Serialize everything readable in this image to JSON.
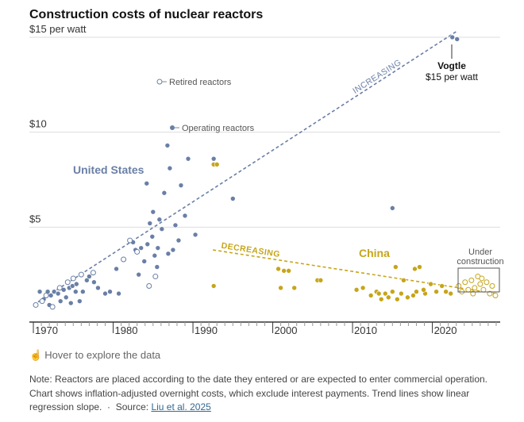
{
  "title": "Construction costs of nuclear reactors",
  "hover_text": "Hover to explore the data",
  "note": {
    "text": "Note: Reactors are placed according to the date they entered or are expected to enter commercial operation. Chart shows inflation-adjusted overnight costs, which exclude interest payments. Trend lines show linear regression slope.",
    "source_label": "Source:",
    "source_link": "Liu et al. 2025"
  },
  "colors": {
    "us": "#6a7fa6",
    "china": "#c6a51a",
    "retired": "#6a7fa6",
    "axis": "#333333",
    "grid": "#dddddd"
  },
  "annotations": {
    "us_label": "United States",
    "china_label": "China",
    "vogtle_name": "Vogtle",
    "vogtle_value": "$15 per watt",
    "retired_legend": "Retired reactors",
    "operating_legend": "Operating reactors",
    "increasing": "INCREASING",
    "decreasing": "DECREASING",
    "under_construction": [
      "Under",
      "construction"
    ]
  },
  "chart_data": {
    "type": "scatter",
    "title": "Construction costs of nuclear reactors",
    "xlabel": "",
    "ylabel": "",
    "xlim": [
      1969.5,
      2028.5
    ],
    "ylim": [
      0,
      15.5
    ],
    "x_ticks": [
      1970,
      1980,
      1990,
      2000,
      2010,
      2020
    ],
    "x_tick_labels": [
      "1970",
      "1980",
      "1990",
      "2000",
      "2010",
      "2020"
    ],
    "y_ticks": [
      5,
      10,
      15
    ],
    "y_tick_labels": [
      "$5",
      "$10",
      "$15 per watt"
    ],
    "grid": "horizontal",
    "series": [
      {
        "name": "United States",
        "status": "operating",
        "points": [
          [
            1970.8,
            1.6
          ],
          [
            1971.3,
            1.2
          ],
          [
            1971.8,
            1.6
          ],
          [
            1972.2,
            1.4
          ],
          [
            1972.6,
            1.6
          ],
          [
            1973.1,
            1.5
          ],
          [
            1973.4,
            1.1
          ],
          [
            1973.8,
            1.7
          ],
          [
            1974.1,
            1.3
          ],
          [
            1974.5,
            1.8
          ],
          [
            1974.9,
            1.9
          ],
          [
            1975.4,
            2.0
          ],
          [
            1975.8,
            1.1
          ],
          [
            1976.2,
            1.6
          ],
          [
            1976.7,
            2.2
          ],
          [
            1977.0,
            2.4
          ],
          [
            1977.6,
            2.1
          ],
          [
            1978.1,
            1.8
          ],
          [
            1979.0,
            1.5
          ],
          [
            1979.6,
            1.6
          ],
          [
            1980.4,
            2.8
          ],
          [
            1980.7,
            1.5
          ],
          [
            1982.5,
            4.2
          ],
          [
            1982.8,
            3.8
          ],
          [
            1983.2,
            2.5
          ],
          [
            1983.5,
            3.9
          ],
          [
            1983.9,
            3.2
          ],
          [
            1984.3,
            4.1
          ],
          [
            1984.6,
            5.2
          ],
          [
            1984.9,
            4.5
          ],
          [
            1985.2,
            3.5
          ],
          [
            1985.5,
            2.9
          ],
          [
            1985.8,
            5.4
          ],
          [
            1986.1,
            4.9
          ],
          [
            1986.4,
            6.8
          ],
          [
            1986.8,
            9.3
          ],
          [
            1987.1,
            8.1
          ],
          [
            1987.5,
            3.8
          ],
          [
            1987.8,
            5.1
          ],
          [
            1988.2,
            4.3
          ],
          [
            1988.5,
            7.2
          ],
          [
            1989.0,
            5.6
          ],
          [
            1989.4,
            8.6
          ],
          [
            1990.3,
            4.6
          ],
          [
            1992.6,
            8.6
          ],
          [
            1995.0,
            6.5
          ],
          [
            2015.0,
            6.0
          ],
          [
            2022.5,
            15.0
          ],
          [
            2023.1,
            14.9
          ],
          [
            1985.6,
            3.9
          ],
          [
            1984.2,
            7.3
          ],
          [
            1985.0,
            5.8
          ],
          [
            1986.9,
            3.6
          ],
          [
            1975.3,
            1.6
          ],
          [
            1972.0,
            0.9
          ],
          [
            1974.7,
            1.0
          ]
        ]
      },
      {
        "name": "Retired reactors",
        "status": "retired",
        "points": [
          [
            1970.3,
            0.9
          ],
          [
            1971.1,
            1.1
          ],
          [
            1971.6,
            1.4
          ],
          [
            1972.4,
            0.8
          ],
          [
            1973.3,
            1.8
          ],
          [
            1974.3,
            2.1
          ],
          [
            1975.0,
            2.3
          ],
          [
            1976.0,
            2.5
          ],
          [
            1977.5,
            2.6
          ],
          [
            1981.3,
            3.3
          ],
          [
            1982.1,
            4.3
          ],
          [
            1983.0,
            3.7
          ],
          [
            1984.5,
            1.9
          ],
          [
            1985.3,
            2.4
          ]
        ]
      },
      {
        "name": "China",
        "status": "operating",
        "points": [
          [
            1992.6,
            8.3
          ],
          [
            1993.0,
            8.3
          ],
          [
            1992.6,
            1.9
          ],
          [
            2000.7,
            2.8
          ],
          [
            2001.0,
            1.8
          ],
          [
            2001.4,
            2.7
          ],
          [
            2002.0,
            2.7
          ],
          [
            2002.7,
            1.8
          ],
          [
            2005.6,
            2.2
          ],
          [
            2006.0,
            2.2
          ],
          [
            2010.5,
            1.7
          ],
          [
            2011.3,
            1.8
          ],
          [
            2012.3,
            1.4
          ],
          [
            2013.0,
            1.6
          ],
          [
            2013.6,
            1.2
          ],
          [
            2014.1,
            1.5
          ],
          [
            2014.5,
            1.3
          ],
          [
            2015.0,
            1.6
          ],
          [
            2015.6,
            1.2
          ],
          [
            2015.4,
            2.9
          ],
          [
            2016.1,
            1.5
          ],
          [
            2016.9,
            1.3
          ],
          [
            2017.6,
            1.4
          ],
          [
            2018.0,
            1.6
          ],
          [
            2018.4,
            2.9
          ],
          [
            2019.1,
            1.5
          ],
          [
            2019.8,
            2.0
          ],
          [
            2020.5,
            1.6
          ],
          [
            2021.2,
            1.9
          ],
          [
            2021.7,
            1.6
          ],
          [
            2013.3,
            1.5
          ],
          [
            2016.4,
            2.2
          ],
          [
            2017.8,
            2.8
          ],
          [
            2018.9,
            1.7
          ],
          [
            2022.3,
            1.5
          ]
        ]
      },
      {
        "name": "Under construction",
        "status": "under_construction",
        "points": [
          [
            2023.3,
            1.9
          ],
          [
            2023.7,
            1.6
          ],
          [
            2024.1,
            2.1
          ],
          [
            2024.5,
            1.7
          ],
          [
            2024.9,
            2.2
          ],
          [
            2025.3,
            1.8
          ],
          [
            2025.7,
            2.4
          ],
          [
            2026.0,
            2.0
          ],
          [
            2026.4,
            1.7
          ],
          [
            2026.8,
            2.1
          ],
          [
            2027.2,
            1.5
          ],
          [
            2027.5,
            1.9
          ],
          [
            2027.9,
            1.4
          ],
          [
            2025.1,
            1.5
          ],
          [
            2026.2,
            2.3
          ]
        ]
      }
    ],
    "trend_lines": [
      {
        "label": "INCREASING",
        "from": [
          1970,
          0.9
        ],
        "to": [
          2023,
          15.3
        ]
      },
      {
        "label": "DECREASING",
        "from": [
          1992.5,
          3.8
        ],
        "to": [
          2028,
          1.5
        ]
      }
    ]
  }
}
